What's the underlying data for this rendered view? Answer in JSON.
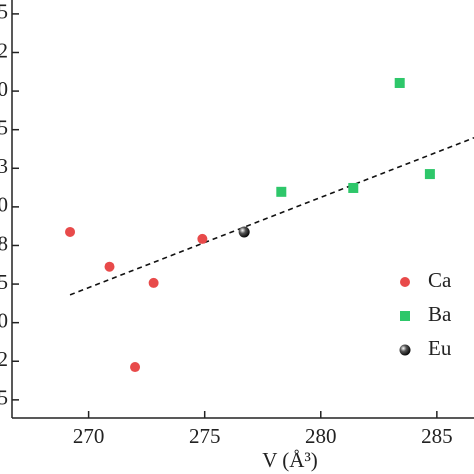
{
  "chart_data": {
    "type": "scatter",
    "x_label": "V (Å³)",
    "xlim": [
      266.7,
      286.6
    ],
    "xticks": [
      270,
      275,
      280,
      285
    ],
    "ylim": [
      -0.47,
      10.36
    ],
    "yticks": [
      {
        "value": 0,
        "label": "5"
      },
      {
        "value": 1,
        "label": "2"
      },
      {
        "value": 2,
        "label": "0"
      },
      {
        "value": 3,
        "label": "5"
      },
      {
        "value": 4,
        "label": "8"
      },
      {
        "value": 5,
        "label": "0"
      },
      {
        "value": 6,
        "label": "3"
      },
      {
        "value": 7,
        "label": "5"
      },
      {
        "value": 8,
        "label": "0"
      },
      {
        "value": 9,
        "label": "2"
      },
      {
        "value": 10,
        "label": "5"
      }
    ],
    "series": [
      {
        "name": "Ca",
        "color": "#e84a4a",
        "marker": "circle",
        "x": [
          269.2,
          270.9,
          272.8,
          274.9,
          272.0
        ],
        "values": [
          4.35,
          3.45,
          3.03,
          4.17,
          0.85
        ]
      },
      {
        "name": "Ba",
        "color": "#2ec76a",
        "marker": "square",
        "x": [
          278.3,
          281.4,
          283.4,
          284.7
        ],
        "values": [
          5.39,
          5.49,
          8.21,
          5.85
        ]
      },
      {
        "name": "Eu",
        "color": "#111111",
        "marker": "ball",
        "x": [
          276.7
        ],
        "values": [
          4.35
        ]
      }
    ],
    "fit_line": {
      "x": [
        269.2,
        286.6
      ],
      "values": [
        2.72,
        6.79
      ],
      "color": "#111111"
    }
  }
}
